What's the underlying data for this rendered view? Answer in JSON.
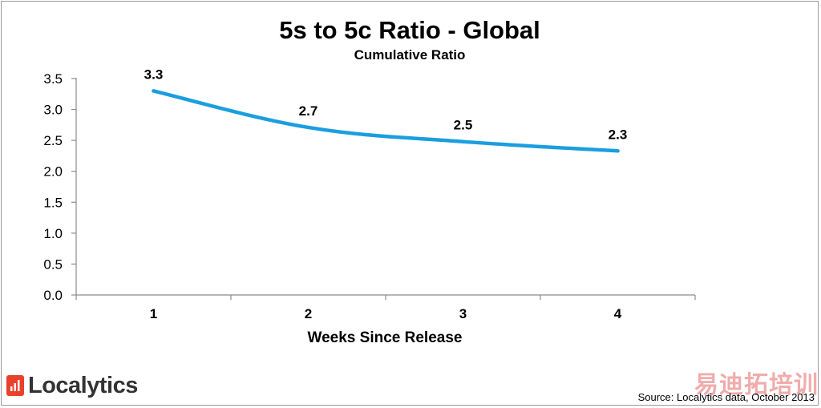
{
  "chart_data": {
    "type": "line",
    "title": "5s to 5c Ratio - Global",
    "subtitle": "Cumulative Ratio",
    "xlabel": "Weeks Since Release",
    "ylabel": "",
    "categories": [
      "1",
      "2",
      "3",
      "4"
    ],
    "series": [
      {
        "name": "Cumulative Ratio",
        "values": [
          3.3,
          2.71,
          2.48,
          2.33
        ],
        "labels": [
          "3.3",
          "2.7",
          "2.5",
          "2.3"
        ],
        "color": "#1a9ee0"
      }
    ],
    "yticks": [
      "0.0",
      "0.5",
      "1.0",
      "1.5",
      "2.0",
      "2.5",
      "3.0",
      "3.5"
    ],
    "ylim": [
      0,
      3.5
    ],
    "grid": false,
    "legend": "none"
  },
  "branding": {
    "logo_text": "Localytics",
    "logo_color": "#e8412c",
    "source_text": "Source: Localytics data, October 2013",
    "watermark_text": "易迪拓培训"
  }
}
